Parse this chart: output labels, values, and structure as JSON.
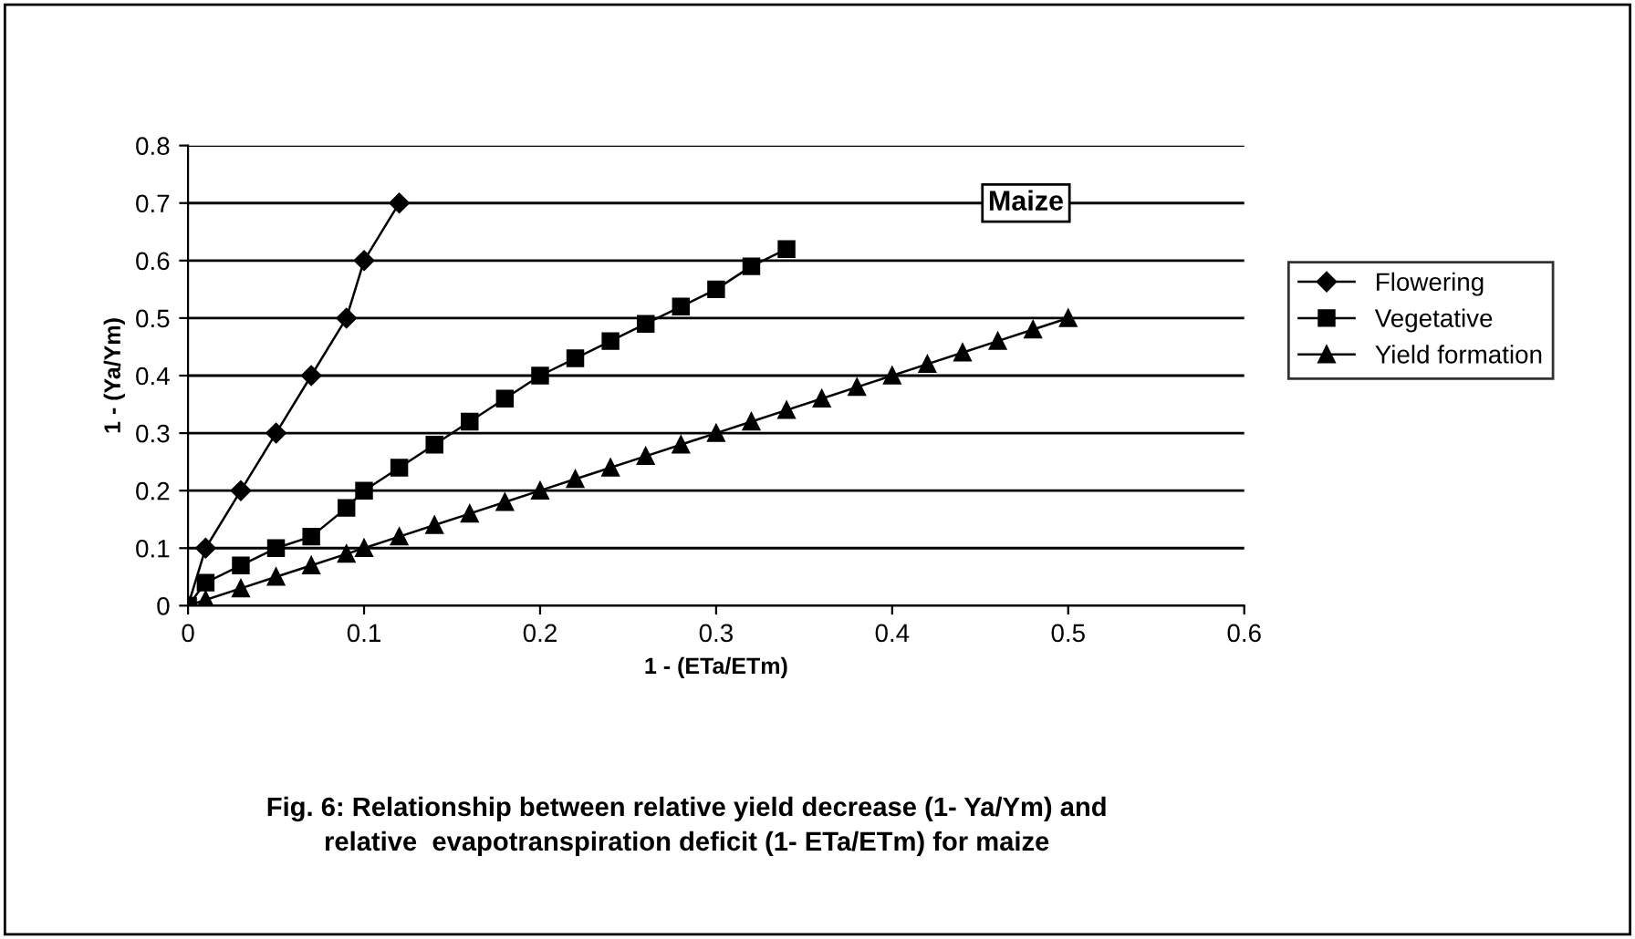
{
  "chart_data": {
    "type": "line",
    "xlabel": "1 - (ETa/ETm)",
    "ylabel": "1 - (Ya/Ym)",
    "xlim": [
      0,
      0.6
    ],
    "xticks": [
      0,
      0.1,
      0.2,
      0.3,
      0.4,
      0.5,
      0.6
    ],
    "ylim": [
      0,
      0.8
    ],
    "yticks": [
      0,
      0.1,
      0.2,
      0.3,
      0.4,
      0.5,
      0.6,
      0.7,
      0.8
    ],
    "grid": "y",
    "legend": "right",
    "line_style": "solid",
    "series": [
      {
        "name": "Flowering",
        "color": "#000000",
        "marker": "diamond",
        "x": [
          0,
          0.01,
          0.03,
          0.05,
          0.07,
          0.09,
          0.1,
          0.12
        ],
        "values": [
          0,
          0.1,
          0.2,
          0.3,
          0.4,
          0.5,
          0.6,
          0.7
        ]
      },
      {
        "name": "Vegetative",
        "color": "#000000",
        "marker": "square",
        "x": [
          0,
          0.01,
          0.03,
          0.05,
          0.07,
          0.09,
          0.1,
          0.12,
          0.14,
          0.16,
          0.18,
          0.2,
          0.22,
          0.24,
          0.26,
          0.28,
          0.3,
          0.32,
          0.34
        ],
        "values": [
          0,
          0.04,
          0.07,
          0.1,
          0.12,
          0.17,
          0.2,
          0.24,
          0.28,
          0.32,
          0.36,
          0.4,
          0.43,
          0.46,
          0.49,
          0.52,
          0.55,
          0.59,
          0.62
        ]
      },
      {
        "name": "Yield formation",
        "color": "#000000",
        "marker": "triangle",
        "x": [
          0,
          0.01,
          0.03,
          0.05,
          0.07,
          0.09,
          0.1,
          0.12,
          0.14,
          0.16,
          0.18,
          0.2,
          0.22,
          0.24,
          0.26,
          0.28,
          0.3,
          0.32,
          0.34,
          0.36,
          0.38,
          0.4,
          0.42,
          0.44,
          0.46,
          0.48,
          0.5
        ],
        "values": [
          0,
          0.01,
          0.03,
          0.05,
          0.07,
          0.09,
          0.1,
          0.12,
          0.14,
          0.16,
          0.18,
          0.2,
          0.22,
          0.24,
          0.26,
          0.28,
          0.3,
          0.32,
          0.34,
          0.36,
          0.38,
          0.4,
          0.42,
          0.44,
          0.46,
          0.48,
          0.5
        ]
      }
    ],
    "annotations": [
      "Maize",
      "Fig. 6: Relationship between relative yield decrease (1- Ya/Ym) and\nrelative  evapotranspiration deficit (1- ETa/ETm) for maize"
    ]
  }
}
